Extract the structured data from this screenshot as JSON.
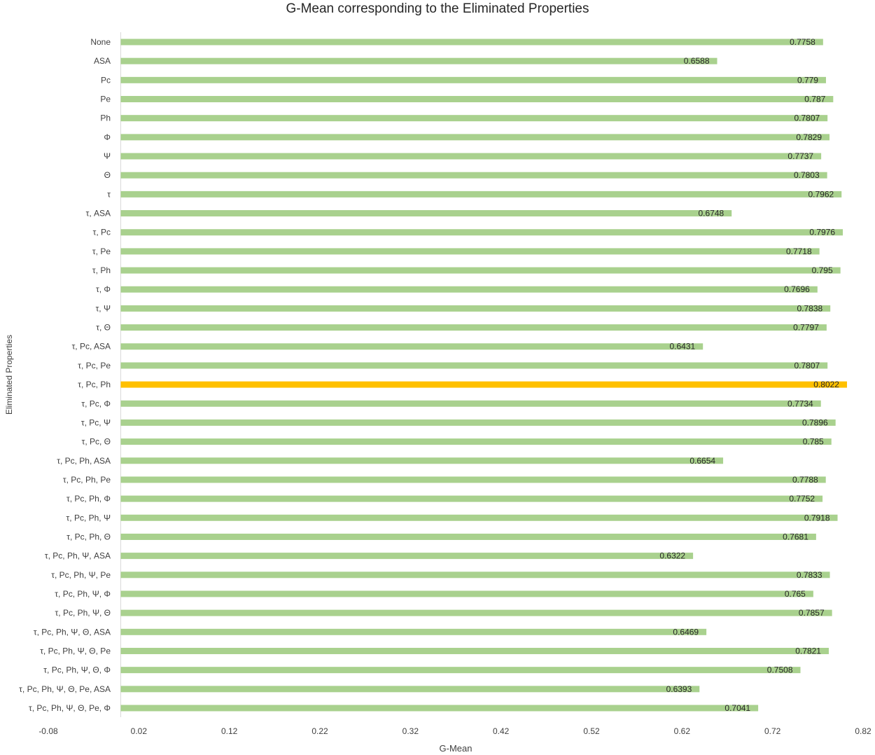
{
  "chart_data": {
    "type": "bar",
    "orientation": "horizontal",
    "title": "G-Mean corresponding to the Eliminated Properties",
    "xlabel": "G-Mean",
    "ylabel": "Eliminated Properties",
    "xlim": [
      -0.08,
      0.82
    ],
    "xticks": [
      "-0.08",
      "0.02",
      "0.12",
      "0.22",
      "0.32",
      "0.42",
      "0.52",
      "0.62",
      "0.72",
      "0.82"
    ],
    "grid": false,
    "bar_color": "#A9D18E",
    "highlight_color": "#FFC000",
    "highlight_category": "τ, Pc, Ph",
    "categories": [
      "None",
      "ASA",
      "Pc",
      "Pe",
      "Ph",
      "Φ",
      "Ψ",
      "Θ",
      "τ",
      "τ, ASA",
      "τ, Pc",
      "τ, Pe",
      "τ, Ph",
      "τ, Φ",
      "τ, Ψ",
      "τ, Θ",
      "τ, Pc, ASA",
      "τ, Pc, Pe",
      "τ, Pc, Ph",
      "τ, Pc, Φ",
      "τ, Pc, Ψ",
      "τ, Pc, Θ",
      "τ, Pc, Ph, ASA",
      "τ, Pc, Ph, Pe",
      "τ, Pc, Ph, Φ",
      "τ, Pc, Ph, Ψ",
      "τ, Pc, Ph, Θ",
      "τ, Pc, Ph, Ψ, ASA",
      "τ, Pc, Ph, Ψ, Pe",
      "τ, Pc, Ph, Ψ, Φ",
      "τ, Pc, Ph, Ψ, Θ",
      "τ, Pc, Ph, Ψ, Θ, ASA",
      "τ, Pc, Ph, Ψ, Θ, Pe",
      "τ, Pc, Ph, Ψ, Θ, Φ",
      "τ, Pc, Ph, Ψ, Θ, Pe, ASA",
      "τ, Pc, Ph, Ψ, Θ, Pe, Φ"
    ],
    "values": [
      0.7758,
      0.6588,
      0.779,
      0.787,
      0.7807,
      0.7829,
      0.7737,
      0.7803,
      0.7962,
      0.6748,
      0.7976,
      0.7718,
      0.795,
      0.7696,
      0.7838,
      0.7797,
      0.6431,
      0.7807,
      0.8022,
      0.7734,
      0.7896,
      0.785,
      0.6654,
      0.7788,
      0.7752,
      0.7918,
      0.7681,
      0.6322,
      0.7833,
      0.765,
      0.7857,
      0.6469,
      0.7821,
      0.7508,
      0.6393,
      0.7041
    ],
    "value_labels": [
      "0.7758",
      "0.6588",
      "0.779",
      "0.787",
      "0.7807",
      "0.7829",
      "0.7737",
      "0.7803",
      "0.7962",
      "0.6748",
      "0.7976",
      "0.7718",
      "0.795",
      "0.7696",
      "0.7838",
      "0.7797",
      "0.6431",
      "0.7807",
      "0.8022",
      "0.7734",
      "0.7896",
      "0.785",
      "0.6654",
      "0.7788",
      "0.7752",
      "0.7918",
      "0.7681",
      "0.6322",
      "0.7833",
      "0.765",
      "0.7857",
      "0.6469",
      "0.7821",
      "0.7508",
      "0.6393",
      "0.7041"
    ]
  }
}
